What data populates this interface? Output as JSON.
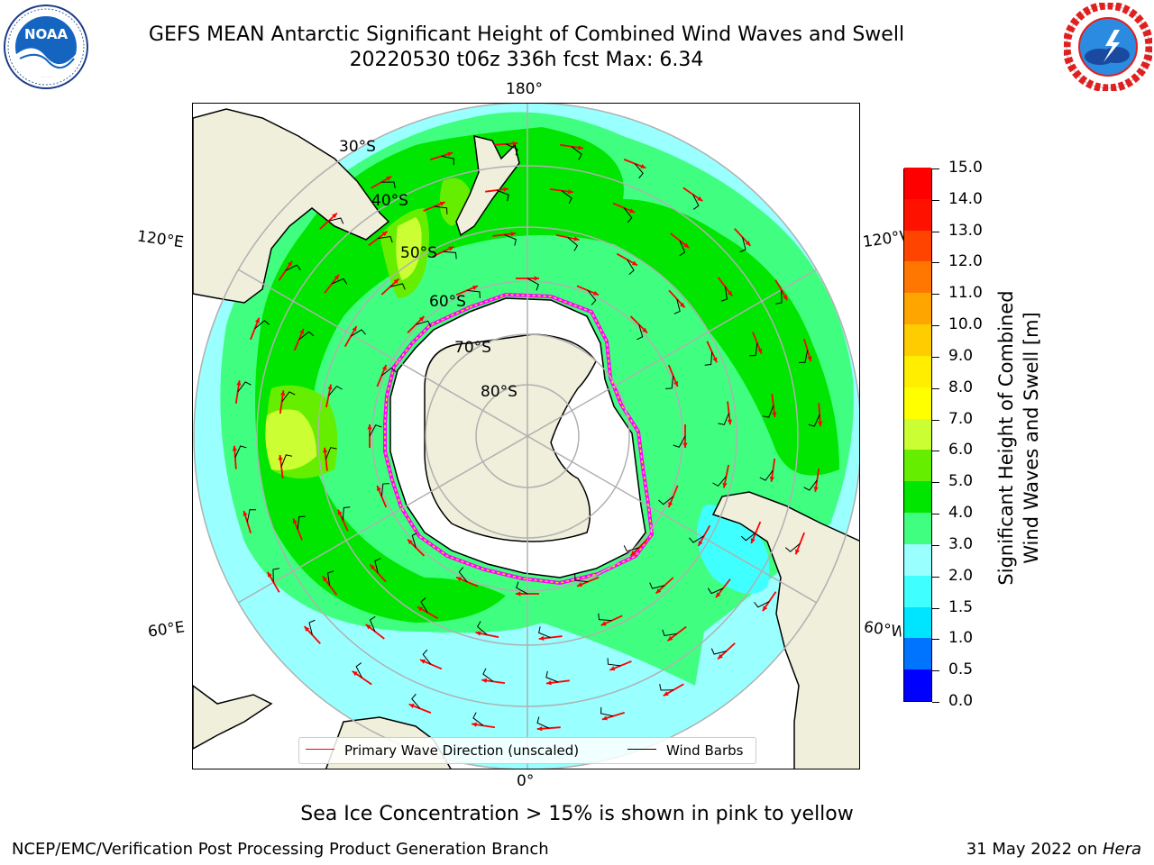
{
  "header": {
    "title_line1": "GEFS MEAN Antarctic Significant Height of Combined Wind Waves and Swell",
    "title_line2": "20220530 t06z 336h fcst   Max: 6.34"
  },
  "logos": {
    "left": {
      "text": "NOAA",
      "ring_text": "NATIONAL OCEANIC AND ATMOSPHERIC ADMINISTRATION · U.S. DEPARTMENT OF COMMERCE",
      "color": "#1565c0"
    },
    "right": {
      "ring_text": "NATIONAL WEATHER SERVICE",
      "color": "#e02020"
    }
  },
  "map": {
    "longitude_labels": {
      "top": "180°",
      "bottom": "0°",
      "left_upper": "120°E",
      "left_lower": "60°E",
      "right_upper": "120°W",
      "right_lower": "60°W"
    },
    "latitude_labels": [
      "30°S",
      "40°S",
      "50°S",
      "60°S",
      "70°S",
      "80°S"
    ],
    "colors": {
      "ocean_light": "#99ffff",
      "ocean_3m": "#40ff80",
      "ocean_4m": "#00e600",
      "ocean_5m": "#66ee00",
      "ocean_6m": "#ccff33",
      "land": "#efefdc",
      "ice": "#ffffff",
      "grid": "#b0b0b0",
      "arrow": "#ff0000",
      "barb": "#000000"
    }
  },
  "legend": {
    "wave_direction": "Primary Wave Direction (unscaled)",
    "wind_barbs": "Wind Barbs",
    "wave_color": "#ff0000",
    "barb_color": "#000000"
  },
  "colorbar": {
    "ticks": [
      "0.0",
      "0.5",
      "1.0",
      "1.5",
      "2.0",
      "3.0",
      "4.0",
      "5.0",
      "6.0",
      "7.0",
      "8.0",
      "9.0",
      "10.0",
      "11.0",
      "12.0",
      "13.0",
      "14.0",
      "15.0"
    ],
    "colors": [
      "#0000ff",
      "#0073ff",
      "#00e5ff",
      "#40ffff",
      "#99ffff",
      "#40ff80",
      "#00e600",
      "#66ee00",
      "#ccff33",
      "#ffff00",
      "#ffee00",
      "#ffcc00",
      "#ffa500",
      "#ff7700",
      "#ff4400",
      "#ff1100",
      "#ff0000"
    ],
    "label_line1": "Significant Height of Combined",
    "label_line2": "Wind Waves and Swell [m]"
  },
  "footer": {
    "sea_ice_note": "Sea Ice Concentration > 15% is shown in pink to yellow",
    "credit": "NCEP/EMC/Verification Post Processing Product Generation Branch",
    "date": "31 May 2022 on ",
    "host": "Hera"
  }
}
